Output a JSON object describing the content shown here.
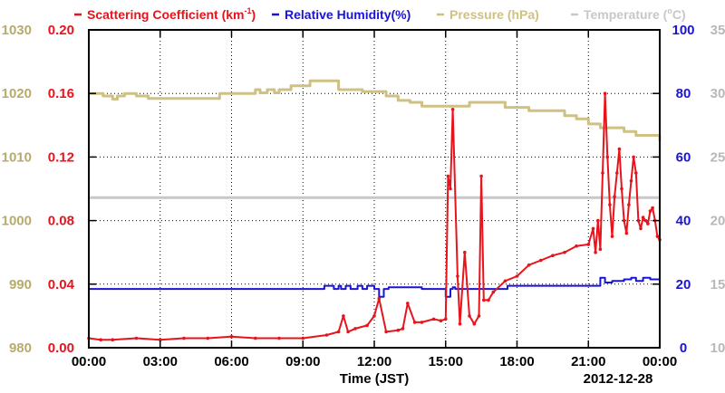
{
  "chart_data": {
    "type": "line",
    "legend": [
      {
        "label": "Scattering Coefficient (km",
        "sup": "-1",
        "close": ")",
        "color": "#e8141c"
      },
      {
        "label": "Relative Humidity(%)",
        "color": "#1a14d8"
      },
      {
        "label": "Pressure (hPa)",
        "color": "#cfc184"
      },
      {
        "label": "Temperature (",
        "sup": "o",
        "close": "C)",
        "color": "#c8c8c8"
      }
    ],
    "xlabel": "Time (JST)",
    "date_label": "2012-12-28",
    "x_ticks": [
      "00:00",
      "03:00",
      "06:00",
      "09:00",
      "12:00",
      "15:00",
      "18:00",
      "21:00",
      "00:00"
    ],
    "x_range_hours": [
      0,
      24
    ],
    "axes": {
      "pressure": {
        "ticks": [
          "1030",
          "1020",
          "1010",
          "1000",
          "990",
          "980"
        ],
        "range": [
          980,
          1030
        ],
        "color": "#b7aa6a"
      },
      "scattering": {
        "ticks": [
          "0.20",
          "0.16",
          "0.12",
          "0.08",
          "0.04",
          "0.00"
        ],
        "range": [
          0,
          0.2
        ],
        "color": "#e8141c"
      },
      "humidity": {
        "ticks": [
          "100",
          "80",
          "60",
          "40",
          "20",
          "0"
        ],
        "range": [
          0,
          100
        ],
        "color": "#1a14d8"
      },
      "temperature": {
        "ticks": [
          "35",
          "30",
          "25",
          "20",
          "15",
          "10"
        ],
        "range": [
          10,
          35
        ],
        "color": "#b8b8b8"
      }
    },
    "series": [
      {
        "name": "Scattering Coefficient",
        "axis": "scattering",
        "color": "#e8141c",
        "x": [
          0.0,
          0.5,
          1.0,
          2.0,
          3.0,
          4.0,
          5.0,
          6.0,
          7.0,
          8.0,
          9.0,
          10.0,
          10.5,
          10.7,
          10.9,
          11.2,
          11.7,
          12.0,
          12.2,
          12.5,
          13.0,
          13.2,
          13.4,
          13.7,
          14.0,
          14.5,
          14.8,
          15.0,
          15.1,
          15.2,
          15.3,
          15.5,
          15.6,
          15.8,
          16.0,
          16.2,
          16.4,
          16.5,
          16.6,
          16.8,
          17.0,
          17.5,
          18.0,
          18.5,
          19.0,
          19.5,
          20.0,
          20.5,
          21.0,
          21.2,
          21.3,
          21.4,
          21.5,
          21.6,
          21.7,
          21.8,
          21.9,
          22.0,
          22.1,
          22.2,
          22.3,
          22.4,
          22.5,
          22.6,
          22.7,
          22.8,
          22.9,
          23.0,
          23.1,
          23.2,
          23.3,
          23.4,
          23.5,
          23.6,
          23.7,
          23.8,
          23.9,
          24.0
        ],
        "values": [
          0.006,
          0.005,
          0.005,
          0.006,
          0.005,
          0.006,
          0.006,
          0.007,
          0.006,
          0.006,
          0.006,
          0.008,
          0.01,
          0.02,
          0.01,
          0.012,
          0.014,
          0.02,
          0.031,
          0.01,
          0.011,
          0.012,
          0.028,
          0.016,
          0.016,
          0.018,
          0.017,
          0.018,
          0.108,
          0.1,
          0.15,
          0.045,
          0.015,
          0.06,
          0.02,
          0.015,
          0.02,
          0.108,
          0.03,
          0.03,
          0.035,
          0.042,
          0.045,
          0.052,
          0.055,
          0.058,
          0.06,
          0.064,
          0.065,
          0.075,
          0.06,
          0.08,
          0.062,
          0.11,
          0.16,
          0.12,
          0.09,
          0.07,
          0.095,
          0.11,
          0.125,
          0.1,
          0.08,
          0.072,
          0.09,
          0.105,
          0.12,
          0.11,
          0.08,
          0.075,
          0.082,
          0.08,
          0.078,
          0.086,
          0.088,
          0.08,
          0.07,
          0.068
        ]
      },
      {
        "name": "Relative Humidity",
        "axis": "humidity",
        "color": "#1a14d8",
        "x": [
          0.0,
          9.7,
          9.9,
          10.3,
          10.5,
          10.6,
          10.8,
          11.0,
          11.3,
          11.5,
          11.7,
          12.0,
          12.2,
          12.4,
          12.6,
          14.0,
          14.9,
          15.0,
          15.1,
          15.2,
          15.3,
          15.4,
          15.6,
          17.5,
          17.6,
          18.0,
          21.0,
          21.4,
          21.5,
          21.6,
          21.7,
          22.0,
          22.5,
          22.8,
          23.0,
          23.3,
          23.6,
          24.0
        ],
        "values": [
          18.5,
          18.5,
          19.5,
          18.5,
          19.5,
          18.5,
          19.5,
          18.5,
          19.5,
          18.5,
          19.5,
          18.5,
          16.0,
          18.5,
          19.0,
          18.5,
          18.5,
          16.0,
          16.0,
          18.5,
          19.0,
          18.5,
          18.5,
          18.5,
          19.5,
          19.5,
          19.5,
          19.5,
          22.0,
          22.0,
          20.5,
          21.0,
          21.5,
          22.0,
          21.0,
          22.0,
          21.5,
          21.5
        ]
      },
      {
        "name": "Pressure",
        "axis": "pressure",
        "color": "#cfc184",
        "x": [
          0.0,
          0.6,
          1.0,
          1.2,
          1.5,
          2.0,
          2.5,
          4.0,
          5.5,
          6.0,
          7.0,
          7.2,
          7.5,
          7.8,
          8.0,
          8.5,
          9.0,
          9.3,
          10.0,
          10.5,
          11.5,
          12.5,
          13.0,
          13.5,
          14.0,
          15.0,
          16.0,
          17.0,
          17.5,
          18.0,
          18.5,
          19.0,
          20.0,
          20.5,
          21.0,
          21.5,
          22.0,
          22.5,
          23.0,
          23.5,
          24.0
        ],
        "values": [
          1020,
          1019.6,
          1019.1,
          1019.6,
          1020,
          1019.6,
          1019.2,
          1019.2,
          1020,
          1020,
          1020.6,
          1020.1,
          1020.6,
          1020.1,
          1020.6,
          1021.2,
          1021.2,
          1022.0,
          1022.0,
          1020.6,
          1020.3,
          1019.6,
          1018.9,
          1018.6,
          1018.0,
          1018.0,
          1018.6,
          1018.6,
          1017.8,
          1017.8,
          1017.3,
          1017.3,
          1016.5,
          1016.0,
          1015.2,
          1014.6,
          1014.6,
          1014.0,
          1013.4,
          1013.4,
          1012.5
        ]
      },
      {
        "name": "Temperature",
        "axis": "temperature",
        "color": "#c8c8c8",
        "x": [
          0,
          24
        ],
        "values": [
          21.8,
          21.8
        ]
      }
    ],
    "grid": true
  }
}
